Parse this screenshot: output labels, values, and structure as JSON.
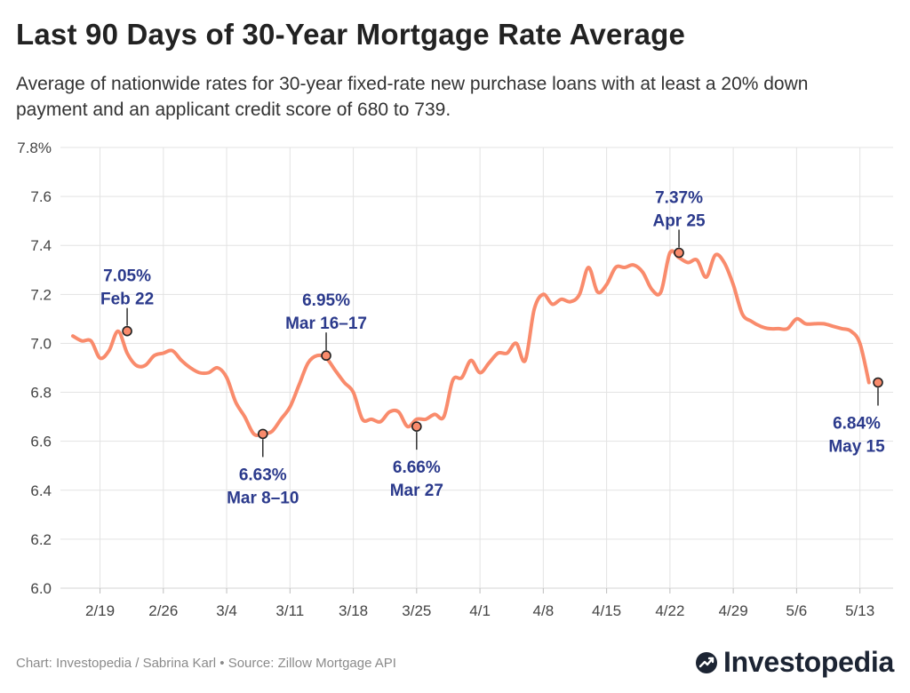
{
  "header": {
    "title": "Last 90 Days of 30-Year Mortgage Rate Average",
    "subtitle": "Average of nationwide rates for 30-year fixed-rate new purchase loans with at least a 20% down payment and an applicant credit score of 680 to 739."
  },
  "footer": {
    "source": "Chart: Investopedia / Sabrina Karl • Source: Zillow Mortgage API",
    "brand": "Investopedia"
  },
  "colors": {
    "line": "#f98b6c",
    "annotation": "#2b3a8c",
    "grid": "#e3e3e3",
    "axis_text": "#444444"
  },
  "chart_data": {
    "type": "line",
    "title": "Last 90 Days of 30-Year Mortgage Rate Average",
    "xlabel": "",
    "ylabel": "",
    "ylim": [
      6.0,
      7.8
    ],
    "y_ticks": [
      "6.0",
      "6.2",
      "6.4",
      "6.6",
      "6.8",
      "7.0",
      "7.2",
      "7.4",
      "7.6",
      "7.8%"
    ],
    "y_tick_values": [
      6.0,
      6.2,
      6.4,
      6.6,
      6.8,
      7.0,
      7.2,
      7.4,
      7.6,
      7.8
    ],
    "x_ticks": [
      "2/19",
      "2/26",
      "3/4",
      "3/11",
      "3/18",
      "3/25",
      "4/1",
      "4/8",
      "4/15",
      "4/22",
      "4/29",
      "5/6",
      "5/13"
    ],
    "x_tick_days": [
      3,
      10,
      17,
      24,
      31,
      38,
      45,
      52,
      59,
      66,
      73,
      80,
      87
    ],
    "x_range_days": [
      0,
      90
    ],
    "series": [
      {
        "name": "30-Year Mortgage Rate Average",
        "x_days": [
          0,
          1,
          2,
          3,
          4,
          5,
          6,
          7,
          8,
          9,
          10,
          11,
          12,
          13,
          14,
          15,
          16,
          17,
          18,
          19,
          20,
          21,
          22,
          23,
          24,
          25,
          26,
          27,
          28,
          29,
          30,
          31,
          32,
          33,
          34,
          35,
          36,
          37,
          38,
          39,
          40,
          41,
          42,
          43,
          44,
          45,
          46,
          47,
          48,
          49,
          50,
          51,
          52,
          53,
          54,
          55,
          56,
          57,
          58,
          59,
          60,
          61,
          62,
          63,
          64,
          65,
          66,
          67,
          68,
          69,
          70,
          71,
          72,
          73,
          74,
          75,
          76,
          77,
          78,
          79,
          80,
          81,
          82,
          83,
          84,
          85,
          86,
          87,
          88
        ],
        "values": [
          7.03,
          7.01,
          7.01,
          6.94,
          6.97,
          7.05,
          6.96,
          6.91,
          6.91,
          6.95,
          6.96,
          6.97,
          6.93,
          6.9,
          6.88,
          6.88,
          6.9,
          6.86,
          6.76,
          6.7,
          6.63,
          6.63,
          6.64,
          6.69,
          6.74,
          6.83,
          6.92,
          6.95,
          6.94,
          6.89,
          6.84,
          6.8,
          6.69,
          6.69,
          6.68,
          6.72,
          6.72,
          6.66,
          6.69,
          6.69,
          6.71,
          6.7,
          6.85,
          6.86,
          6.93,
          6.88,
          6.92,
          6.96,
          6.96,
          7.0,
          6.93,
          7.14,
          7.2,
          7.16,
          7.18,
          7.17,
          7.2,
          7.31,
          7.21,
          7.24,
          7.31,
          7.31,
          7.32,
          7.29,
          7.22,
          7.21,
          7.37,
          7.35,
          7.33,
          7.34,
          7.27,
          7.36,
          7.33,
          7.24,
          7.12,
          7.09,
          7.07,
          7.06,
          7.06,
          7.06,
          7.1,
          7.08,
          7.08,
          7.08,
          7.07,
          7.06,
          7.05,
          7.0,
          6.84
        ]
      }
    ],
    "annotations": [
      {
        "value_label": "7.05%",
        "date_label": "Feb 22",
        "x_day": 6,
        "y": 7.05,
        "position": "above"
      },
      {
        "value_label": "6.63%",
        "date_label": "Mar 8–10",
        "x_day": 21,
        "y": 6.63,
        "position": "below"
      },
      {
        "value_label": "6.95%",
        "date_label": "Mar 16–17",
        "x_day": 28,
        "y": 6.95,
        "position": "above"
      },
      {
        "value_label": "6.66%",
        "date_label": "Mar 27",
        "x_day": 38,
        "y": 6.66,
        "position": "below"
      },
      {
        "value_label": "7.37%",
        "date_label": "Apr 25",
        "x_day": 67,
        "y": 7.37,
        "position": "above"
      },
      {
        "value_label": "6.84%",
        "date_label": "May 15",
        "x_day": 89,
        "y": 6.84,
        "position": "below"
      }
    ]
  }
}
